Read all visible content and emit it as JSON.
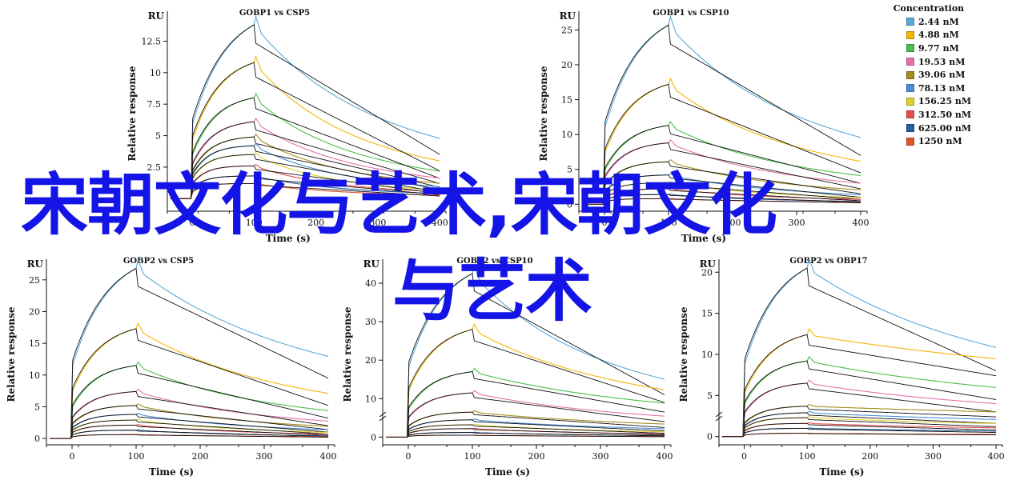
{
  "watermark": {
    "line1": "宋朝文化与艺术,宋朝文化",
    "line2": "与艺术",
    "color": "#1414e6"
  },
  "legend": {
    "title": "Concentration",
    "items": [
      {
        "label": "2.44 nM",
        "color": "#5aa9d6"
      },
      {
        "label": "4.88 nM",
        "color": "#f2b705"
      },
      {
        "label": "9.77 nM",
        "color": "#4bbf4b"
      },
      {
        "label": "19.53 nM",
        "color": "#e86fae"
      },
      {
        "label": "39.06 nM",
        "color": "#a58c1c"
      },
      {
        "label": "78.13 nM",
        "color": "#4a90d9"
      },
      {
        "label": "156.25 nM",
        "color": "#d9d233"
      },
      {
        "label": "312.50 nM",
        "color": "#e84b4b"
      },
      {
        "label": "625.00 nM",
        "color": "#2c5aa0"
      },
      {
        "label": "1250 nM",
        "color": "#e2532a"
      }
    ]
  },
  "chart_data": [
    {
      "type": "line",
      "title": "GOBP1 vs CSP5",
      "ylabel": "Relative response",
      "xlabel": "Time (s)",
      "unit_label": "RU",
      "xlim": [
        -40,
        410
      ],
      "ylim": [
        -1,
        14.5
      ],
      "xticks": [
        0,
        100,
        200,
        300,
        400
      ],
      "yticks": [
        2.5,
        5,
        7.5,
        10,
        12.5
      ],
      "plateaus": [
        13.8,
        10.8,
        8.0,
        6.1,
        4.9,
        4.2,
        3.5,
        2.6,
        1.8,
        1.2
      ],
      "dissoc_end": [
        3.5,
        2.2,
        1.6,
        1.2,
        0.9,
        0.7,
        0.5,
        0.4,
        0.3,
        0.2
      ]
    },
    {
      "type": "line",
      "title": "GOBP1 vs CSP10",
      "ylabel": "Relative response",
      "xlabel": "Time (s)",
      "unit_label": "RU",
      "xlim": [
        -40,
        410
      ],
      "ylim": [
        -1,
        27
      ],
      "xticks": [
        0,
        100,
        200,
        300,
        400
      ],
      "yticks": [
        0,
        5,
        10,
        15,
        20,
        25
      ],
      "plateaus": [
        25.7,
        17.2,
        11.3,
        8.8,
        6.1,
        4.2,
        3.1,
        2.2,
        1.4,
        0.8
      ],
      "dissoc_end": [
        7.0,
        4.5,
        3.0,
        2.2,
        1.5,
        1.0,
        0.7,
        0.5,
        0.3,
        0.2
      ]
    },
    {
      "type": "line",
      "title": "GOBP2 vs CSP5",
      "ylabel": "Relative response",
      "xlabel": "Time (s)",
      "unit_label": "RU",
      "xlim": [
        -40,
        410
      ],
      "ylim": [
        -1,
        27.5
      ],
      "xticks": [
        0,
        100,
        200,
        300,
        400
      ],
      "yticks": [
        0,
        5,
        10,
        15,
        20,
        25
      ],
      "plateaus": [
        26.8,
        17.3,
        11.5,
        7.4,
        5.2,
        3.8,
        2.9,
        2.1,
        1.3,
        0.6
      ],
      "dissoc_end": [
        9.5,
        5.2,
        3.2,
        2.0,
        1.4,
        1.0,
        0.7,
        0.5,
        0.3,
        0.2
      ]
    },
    {
      "type": "line",
      "title": "GOBP2 vs CSP10",
      "ylabel": "Relative response",
      "xlabel": "Time (s)",
      "unit_label": "RU",
      "xlim": [
        -40,
        410
      ],
      "ylim": [
        -2,
        45
      ],
      "xticks": [
        0,
        100,
        200,
        300,
        400
      ],
      "yticks": [
        0,
        10,
        20,
        30,
        40
      ],
      "axis_break": true,
      "plateaus": [
        42.5,
        28.0,
        17.0,
        11.5,
        6.5,
        4.5,
        3.2,
        2.2,
        1.2,
        0.5
      ],
      "dissoc_end": [
        11.0,
        9.0,
        6.5,
        4.0,
        2.5,
        1.6,
        1.0,
        0.6,
        0.3,
        0.1
      ]
    },
    {
      "type": "line",
      "title": "GOBP2 vs OBP17",
      "ylabel": "Relative response",
      "xlabel": "Time (s)",
      "unit_label": "RU",
      "xlim": [
        -40,
        410
      ],
      "ylim": [
        -1,
        21
      ],
      "xticks": [
        0,
        100,
        200,
        300,
        400
      ],
      "yticks": [
        0,
        5,
        10,
        15,
        20
      ],
      "axis_break": true,
      "plateaus": [
        20.5,
        12.4,
        9.2,
        6.5,
        3.7,
        2.9,
        2.3,
        1.6,
        1.0,
        0.4
      ],
      "dissoc_end": [
        8.0,
        7.4,
        4.5,
        3.0,
        2.4,
        1.6,
        1.2,
        0.8,
        0.5,
        0.2
      ]
    }
  ]
}
